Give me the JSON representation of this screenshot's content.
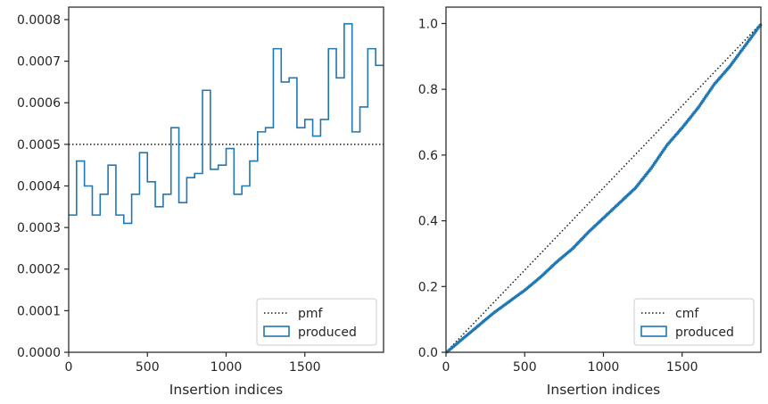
{
  "chart_data": [
    {
      "type": "histogram-step",
      "xlabel": "Insertion indices",
      "ylabel": "",
      "xlim": [
        0,
        2000
      ],
      "ylim": [
        0,
        0.00083
      ],
      "xticks": [
        0,
        500,
        1000,
        1500
      ],
      "yticks": [
        0.0,
        0.0001,
        0.0002,
        0.0003,
        0.0004,
        0.0005,
        0.0006,
        0.0007,
        0.0008
      ],
      "ytick_labels": [
        "0.0000",
        "0.0001",
        "0.0002",
        "0.0003",
        "0.0004",
        "0.0005",
        "0.0006",
        "0.0007",
        "0.0008"
      ],
      "legend_position": "bottom-right",
      "reference": {
        "name": "pmf",
        "style": "dotted",
        "value": 0.0005
      },
      "series": [
        {
          "name": "produced",
          "color": "#1f77b4",
          "bin_edges": [
            0,
            50,
            100,
            150,
            200,
            250,
            300,
            350,
            400,
            450,
            500,
            550,
            600,
            650,
            700,
            750,
            800,
            850,
            900,
            950,
            1000,
            1050,
            1100,
            1150,
            1200,
            1250,
            1300,
            1350,
            1400,
            1450,
            1500,
            1550,
            1600,
            1650,
            1700,
            1750,
            1800,
            1850,
            1900,
            1950,
            2000
          ],
          "values": [
            0.00033,
            0.00046,
            0.0004,
            0.00033,
            0.00038,
            0.00045,
            0.00033,
            0.00031,
            0.00038,
            0.00048,
            0.00041,
            0.00035,
            0.00038,
            0.00054,
            0.00036,
            0.00042,
            0.00043,
            0.00063,
            0.00044,
            0.00045,
            0.00049,
            0.00038,
            0.0004,
            0.00046,
            0.00053,
            0.00054,
            0.00073,
            0.00065,
            0.00066,
            0.00054,
            0.00056,
            0.00052,
            0.00056,
            0.00073,
            0.00066,
            0.00079,
            0.00053,
            0.00059,
            0.00073,
            0.00069
          ]
        }
      ]
    },
    {
      "type": "line",
      "xlabel": "Insertion indices",
      "ylabel": "",
      "xlim": [
        0,
        2000
      ],
      "ylim": [
        0,
        1.05
      ],
      "xticks": [
        0,
        500,
        1000,
        1500
      ],
      "yticks": [
        0.0,
        0.2,
        0.4,
        0.6,
        0.8,
        1.0
      ],
      "ytick_labels": [
        "0.0",
        "0.2",
        "0.4",
        "0.6",
        "0.8",
        "1.0"
      ],
      "legend_position": "bottom-right",
      "reference": {
        "name": "cmf",
        "style": "dotted",
        "x": [
          0,
          2000
        ],
        "y": [
          0,
          1.0
        ]
      },
      "series": [
        {
          "name": "produced",
          "color": "#1f77b4",
          "x": [
            0,
            100,
            200,
            300,
            400,
            500,
            600,
            700,
            800,
            900,
            1000,
            1100,
            1200,
            1300,
            1400,
            1500,
            1600,
            1700,
            1800,
            1900,
            2000
          ],
          "y": [
            0,
            0.04,
            0.08,
            0.12,
            0.155,
            0.19,
            0.23,
            0.275,
            0.315,
            0.365,
            0.41,
            0.455,
            0.5,
            0.56,
            0.63,
            0.685,
            0.745,
            0.815,
            0.87,
            0.935,
            1.0
          ]
        }
      ]
    }
  ]
}
